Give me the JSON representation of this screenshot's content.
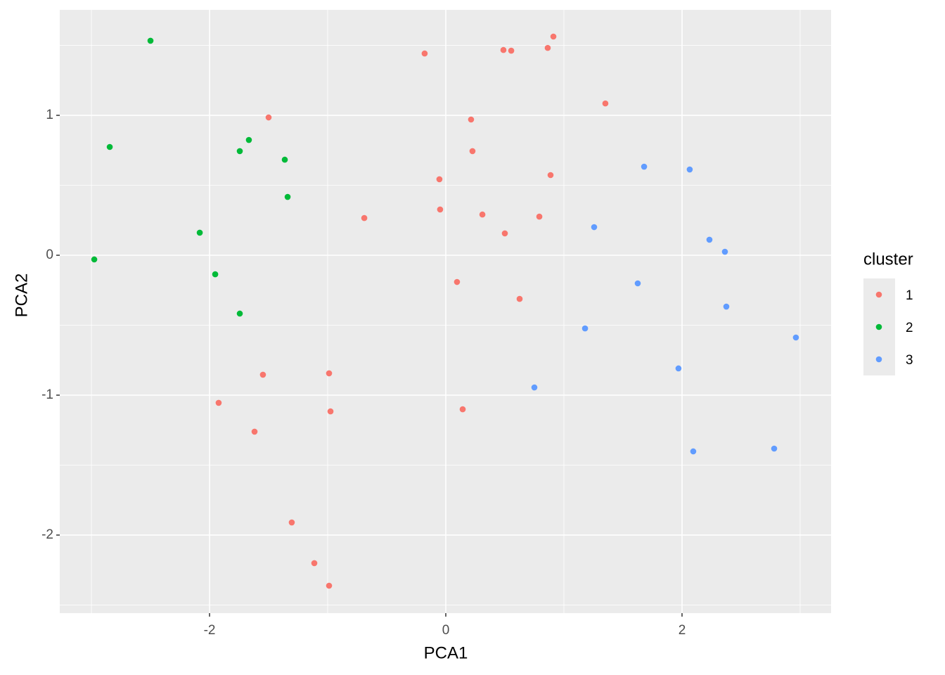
{
  "chart_data": {
    "type": "scatter",
    "x_label": "PCA1",
    "y_label": "PCA2",
    "legend_title": "cluster",
    "legend": "right",
    "grid": true,
    "xlim": [
      -3.268,
      3.262
    ],
    "ylim": [
      -2.558,
      1.754
    ],
    "xticks": [
      -2,
      0,
      2
    ],
    "yticks": [
      -2,
      -1,
      0,
      1
    ],
    "x_minor_grid": [
      -3,
      -1,
      1,
      3
    ],
    "y_minor_grid": [
      -2.5,
      -1.5,
      -0.5,
      0.5,
      1.5
    ],
    "series": [
      {
        "name": "1",
        "color": "#F8766D",
        "x": [
          -0.179,
          0.488,
          0.554,
          0.863,
          0.911,
          1.351,
          -1.5,
          0.214,
          0.226,
          0.887,
          -0.054,
          -0.048,
          -0.69,
          0.31,
          0.792,
          0.5,
          0.095,
          0.625,
          -1.548,
          -0.988,
          -1.923,
          -0.976,
          0.143,
          -1.619,
          -1.304,
          -1.113,
          -0.988
        ],
        "values": [
          1.442,
          1.467,
          1.462,
          1.482,
          1.563,
          1.085,
          0.985,
          0.97,
          0.744,
          0.573,
          0.543,
          0.327,
          0.266,
          0.291,
          0.276,
          0.156,
          -0.191,
          -0.312,
          -0.854,
          -0.844,
          -1.055,
          -1.116,
          -1.101,
          -1.261,
          -1.91,
          -2.201,
          -2.362
        ]
      },
      {
        "name": "2",
        "color": "#00BA38",
        "x": [
          -2.5,
          -2.845,
          -1.667,
          -1.744,
          -1.363,
          -1.339,
          -2.083,
          -2.976,
          -1.952,
          -1.744
        ],
        "values": [
          1.533,
          0.774,
          0.824,
          0.744,
          0.683,
          0.417,
          0.161,
          -0.03,
          -0.136,
          -0.417
        ]
      },
      {
        "name": "3",
        "color": "#619CFF",
        "x": [
          1.679,
          2.065,
          1.256,
          2.232,
          2.363,
          1.625,
          2.375,
          1.179,
          2.964,
          1.97,
          0.75,
          2.78,
          2.095
        ],
        "values": [
          0.633,
          0.613,
          0.201,
          0.111,
          0.025,
          -0.201,
          -0.367,
          -0.523,
          -0.588,
          -0.809,
          -0.945,
          -1.382,
          -1.402
        ]
      }
    ]
  }
}
